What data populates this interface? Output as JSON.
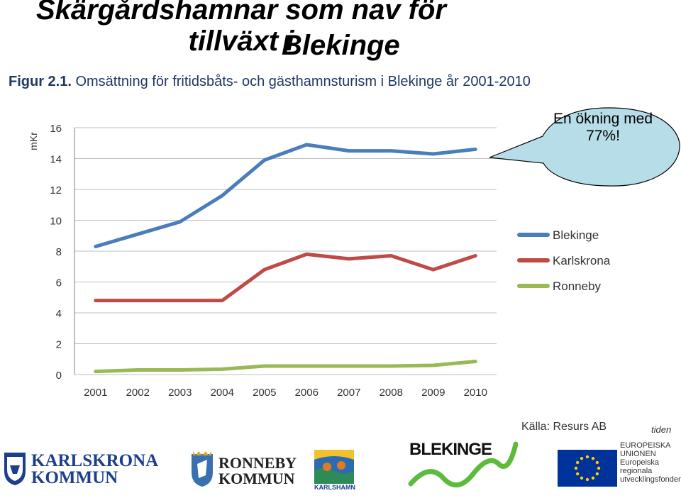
{
  "page": {
    "title_line1": "Skärgårdshamnar som nav för tillväxt i",
    "title_line2": "Blekinge",
    "figure_label": "Figur 2.1.",
    "figure_caption": "Omsättning för fritidsbåts- och gästhamnsturism i Blekinge år 2001-2010",
    "callout": "En ökning med 77%!",
    "source": "Källa: Resurs AB",
    "colors": {
      "Blekinge": "#4a7ebb",
      "Karlskrona": "#be4b48",
      "Ronneby": "#98b954",
      "caption": "#1f3864"
    }
  },
  "chart_data": {
    "type": "line",
    "title": "Omsättning för fritidsbåts- och gästhamnsturism i Blekinge år 2001-2010",
    "xlabel": "",
    "ylabel": "mKr",
    "x": [
      "2001",
      "2002",
      "2003",
      "2004",
      "2005",
      "2006",
      "2007",
      "2008",
      "2009",
      "2010"
    ],
    "yticks": [
      "0",
      "2",
      "4",
      "6",
      "8",
      "10",
      "12",
      "14",
      "16"
    ],
    "ylim": [
      0,
      16
    ],
    "grid": true,
    "legend": "right",
    "series": [
      {
        "name": "Blekinge",
        "values": [
          8.3,
          9.1,
          9.9,
          11.6,
          13.9,
          14.9,
          14.5,
          14.5,
          14.3,
          14.6
        ]
      },
      {
        "name": "Karlskrona",
        "values": [
          4.8,
          4.8,
          4.8,
          4.8,
          6.8,
          7.8,
          7.5,
          7.7,
          6.8,
          7.7
        ]
      },
      {
        "name": "Ronneby",
        "values": [
          0.2,
          0.3,
          0.3,
          0.35,
          0.55,
          0.55,
          0.55,
          0.55,
          0.6,
          0.85
        ]
      }
    ]
  },
  "logos": {
    "karlskrona_1": "KARLSKRONA",
    "karlskrona_2": "KOMMUN",
    "ronneby_1": "RONNEBY",
    "ronneby_2": "KOMMUN",
    "karlshamn": "KARLSHAMN",
    "blekinge": "BLEKINGE",
    "eu_1": "EUROPEISKA",
    "eu_2": "UNIONEN",
    "eu_3": "Europeiska",
    "eu_4": "regionala",
    "eu_5": "utvecklingsfonden",
    "tiden": "tiden"
  }
}
